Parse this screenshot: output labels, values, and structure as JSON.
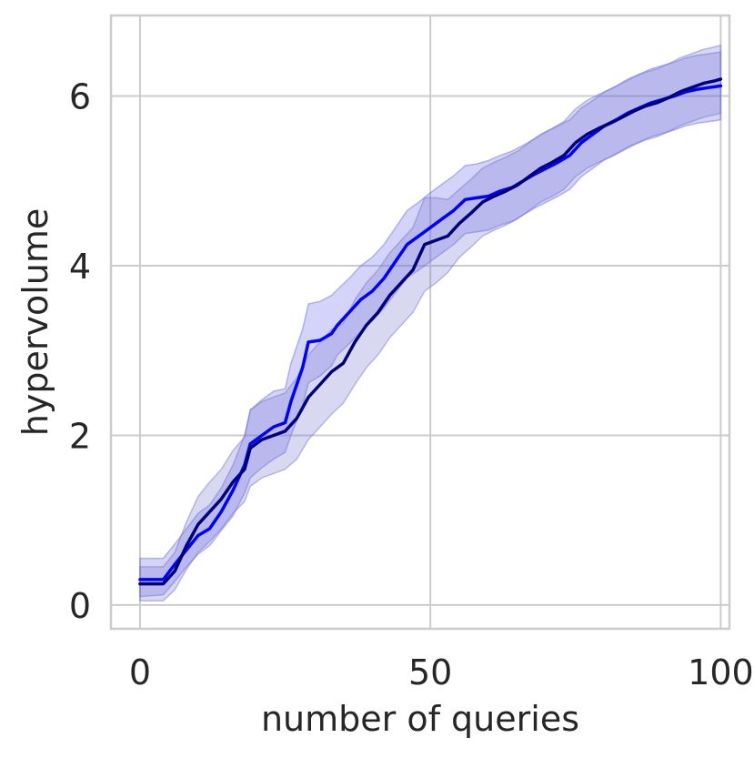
{
  "chart_data": {
    "type": "line",
    "title": "",
    "xlabel": "number of queries",
    "ylabel": "hypervolume",
    "xlim": [
      -5,
      101.5
    ],
    "ylim": [
      -0.28,
      6.95
    ],
    "xticks": [
      0,
      50,
      100
    ],
    "yticks": [
      0,
      2,
      4,
      6
    ],
    "grid": true,
    "legend": "none",
    "series": [
      {
        "color": "#0000ff",
        "band_color": "#6666ee",
        "points": [
          [
            0,
            0.3
          ],
          [
            4,
            0.3
          ],
          [
            6,
            0.48
          ],
          [
            8,
            0.65
          ],
          [
            10,
            0.82
          ],
          [
            12,
            0.9
          ],
          [
            14,
            1.1
          ],
          [
            16,
            1.35
          ],
          [
            18,
            1.65
          ],
          [
            19,
            1.9
          ],
          [
            21,
            2.0
          ],
          [
            23,
            2.1
          ],
          [
            25,
            2.15
          ],
          [
            26,
            2.4
          ],
          [
            28,
            2.8
          ],
          [
            29,
            3.1
          ],
          [
            31,
            3.12
          ],
          [
            33,
            3.2
          ],
          [
            34,
            3.3
          ],
          [
            36,
            3.45
          ],
          [
            38,
            3.6
          ],
          [
            40,
            3.7
          ],
          [
            42,
            3.85
          ],
          [
            44,
            4.05
          ],
          [
            46,
            4.25
          ],
          [
            48,
            4.35
          ],
          [
            50,
            4.45
          ],
          [
            52,
            4.55
          ],
          [
            54,
            4.65
          ],
          [
            56,
            4.78
          ],
          [
            58,
            4.8
          ],
          [
            60,
            4.82
          ],
          [
            62,
            4.88
          ],
          [
            64,
            4.92
          ],
          [
            66,
            5.0
          ],
          [
            68,
            5.08
          ],
          [
            70,
            5.15
          ],
          [
            72,
            5.22
          ],
          [
            74,
            5.3
          ],
          [
            76,
            5.45
          ],
          [
            78,
            5.55
          ],
          [
            80,
            5.65
          ],
          [
            82,
            5.72
          ],
          [
            84,
            5.8
          ],
          [
            86,
            5.86
          ],
          [
            88,
            5.92
          ],
          [
            90,
            5.96
          ],
          [
            92,
            6.0
          ],
          [
            94,
            6.05
          ],
          [
            96,
            6.08
          ],
          [
            98,
            6.1
          ],
          [
            100,
            6.12
          ]
        ],
        "lower": [
          [
            0,
            0.1
          ],
          [
            4,
            0.12
          ],
          [
            6,
            0.28
          ],
          [
            8,
            0.45
          ],
          [
            10,
            0.6
          ],
          [
            12,
            0.7
          ],
          [
            14,
            0.88
          ],
          [
            16,
            1.05
          ],
          [
            18,
            1.32
          ],
          [
            19,
            1.5
          ],
          [
            21,
            1.62
          ],
          [
            23,
            1.72
          ],
          [
            25,
            1.8
          ],
          [
            26,
            2.0
          ],
          [
            28,
            2.35
          ],
          [
            29,
            2.62
          ],
          [
            31,
            2.7
          ],
          [
            33,
            2.82
          ],
          [
            34,
            2.95
          ],
          [
            36,
            3.08
          ],
          [
            38,
            3.22
          ],
          [
            40,
            3.35
          ],
          [
            42,
            3.5
          ],
          [
            44,
            3.68
          ],
          [
            46,
            3.86
          ],
          [
            48,
            3.95
          ],
          [
            50,
            4.05
          ],
          [
            52,
            4.15
          ],
          [
            54,
            4.25
          ],
          [
            56,
            4.38
          ],
          [
            58,
            4.4
          ],
          [
            60,
            4.42
          ],
          [
            62,
            4.48
          ],
          [
            64,
            4.52
          ],
          [
            66,
            4.6
          ],
          [
            68,
            4.68
          ],
          [
            70,
            4.75
          ],
          [
            72,
            4.82
          ],
          [
            74,
            4.9
          ],
          [
            76,
            5.05
          ],
          [
            78,
            5.15
          ],
          [
            80,
            5.25
          ],
          [
            82,
            5.32
          ],
          [
            84,
            5.4
          ],
          [
            86,
            5.46
          ],
          [
            88,
            5.52
          ],
          [
            90,
            5.56
          ],
          [
            92,
            5.6
          ],
          [
            94,
            5.65
          ],
          [
            96,
            5.68
          ],
          [
            98,
            5.7
          ],
          [
            100,
            5.72
          ]
        ],
        "upper": [
          [
            0,
            0.55
          ],
          [
            4,
            0.55
          ],
          [
            6,
            0.72
          ],
          [
            8,
            0.9
          ],
          [
            10,
            1.08
          ],
          [
            12,
            1.18
          ],
          [
            14,
            1.38
          ],
          [
            16,
            1.65
          ],
          [
            18,
            2.0
          ],
          [
            19,
            2.3
          ],
          [
            21,
            2.42
          ],
          [
            23,
            2.52
          ],
          [
            25,
            2.55
          ],
          [
            26,
            2.85
          ],
          [
            28,
            3.25
          ],
          [
            29,
            3.55
          ],
          [
            31,
            3.58
          ],
          [
            33,
            3.65
          ],
          [
            34,
            3.72
          ],
          [
            36,
            3.85
          ],
          [
            38,
            4.0
          ],
          [
            40,
            4.1
          ],
          [
            42,
            4.25
          ],
          [
            44,
            4.45
          ],
          [
            46,
            4.65
          ],
          [
            48,
            4.75
          ],
          [
            50,
            4.86
          ],
          [
            52,
            4.96
          ],
          [
            54,
            5.06
          ],
          [
            56,
            5.18
          ],
          [
            58,
            5.2
          ],
          [
            60,
            5.24
          ],
          [
            62,
            5.3
          ],
          [
            64,
            5.35
          ],
          [
            66,
            5.42
          ],
          [
            68,
            5.5
          ],
          [
            70,
            5.58
          ],
          [
            72,
            5.65
          ],
          [
            74,
            5.72
          ],
          [
            76,
            5.86
          ],
          [
            78,
            5.95
          ],
          [
            80,
            6.05
          ],
          [
            82,
            6.12
          ],
          [
            84,
            6.2
          ],
          [
            86,
            6.26
          ],
          [
            88,
            6.32
          ],
          [
            90,
            6.36
          ],
          [
            92,
            6.4
          ],
          [
            94,
            6.45
          ],
          [
            96,
            6.48
          ],
          [
            98,
            6.5
          ],
          [
            100,
            6.52
          ]
        ]
      },
      {
        "color": "#00007a",
        "band_color": "#7474cc",
        "points": [
          [
            0,
            0.25
          ],
          [
            4,
            0.25
          ],
          [
            6,
            0.4
          ],
          [
            8,
            0.7
          ],
          [
            10,
            0.95
          ],
          [
            12,
            1.1
          ],
          [
            14,
            1.25
          ],
          [
            16,
            1.45
          ],
          [
            18,
            1.6
          ],
          [
            19,
            1.85
          ],
          [
            21,
            1.95
          ],
          [
            23,
            2.0
          ],
          [
            25,
            2.05
          ],
          [
            27,
            2.2
          ],
          [
            29,
            2.45
          ],
          [
            31,
            2.6
          ],
          [
            33,
            2.75
          ],
          [
            35,
            2.85
          ],
          [
            37,
            3.1
          ],
          [
            39,
            3.3
          ],
          [
            41,
            3.45
          ],
          [
            43,
            3.65
          ],
          [
            45,
            3.8
          ],
          [
            47,
            3.95
          ],
          [
            49,
            4.25
          ],
          [
            51,
            4.3
          ],
          [
            53,
            4.35
          ],
          [
            55,
            4.5
          ],
          [
            57,
            4.62
          ],
          [
            59,
            4.75
          ],
          [
            61,
            4.82
          ],
          [
            63,
            4.88
          ],
          [
            65,
            4.95
          ],
          [
            67,
            5.05
          ],
          [
            69,
            5.15
          ],
          [
            71,
            5.22
          ],
          [
            73,
            5.3
          ],
          [
            75,
            5.45
          ],
          [
            77,
            5.55
          ],
          [
            79,
            5.62
          ],
          [
            81,
            5.68
          ],
          [
            83,
            5.75
          ],
          [
            85,
            5.82
          ],
          [
            87,
            5.88
          ],
          [
            89,
            5.92
          ],
          [
            91,
            5.98
          ],
          [
            93,
            6.05
          ],
          [
            95,
            6.1
          ],
          [
            97,
            6.15
          ],
          [
            99,
            6.18
          ],
          [
            100,
            6.2
          ]
        ],
        "lower": [
          [
            0,
            0.05
          ],
          [
            4,
            0.05
          ],
          [
            6,
            0.18
          ],
          [
            8,
            0.42
          ],
          [
            10,
            0.62
          ],
          [
            12,
            0.75
          ],
          [
            14,
            0.9
          ],
          [
            16,
            1.08
          ],
          [
            18,
            1.22
          ],
          [
            19,
            1.4
          ],
          [
            21,
            1.5
          ],
          [
            23,
            1.55
          ],
          [
            25,
            1.6
          ],
          [
            27,
            1.72
          ],
          [
            29,
            1.95
          ],
          [
            31,
            2.1
          ],
          [
            33,
            2.25
          ],
          [
            35,
            2.38
          ],
          [
            37,
            2.6
          ],
          [
            39,
            2.8
          ],
          [
            41,
            2.95
          ],
          [
            43,
            3.15
          ],
          [
            45,
            3.3
          ],
          [
            47,
            3.45
          ],
          [
            49,
            3.7
          ],
          [
            51,
            3.8
          ],
          [
            53,
            3.92
          ],
          [
            55,
            4.1
          ],
          [
            57,
            4.22
          ],
          [
            59,
            4.35
          ],
          [
            61,
            4.42
          ],
          [
            63,
            4.48
          ],
          [
            65,
            4.55
          ],
          [
            67,
            4.65
          ],
          [
            69,
            4.75
          ],
          [
            71,
            4.82
          ],
          [
            73,
            4.9
          ],
          [
            75,
            5.05
          ],
          [
            77,
            5.15
          ],
          [
            79,
            5.22
          ],
          [
            81,
            5.28
          ],
          [
            83,
            5.35
          ],
          [
            85,
            5.42
          ],
          [
            87,
            5.48
          ],
          [
            89,
            5.52
          ],
          [
            91,
            5.58
          ],
          [
            93,
            5.65
          ],
          [
            95,
            5.7
          ],
          [
            97,
            5.75
          ],
          [
            99,
            5.78
          ],
          [
            100,
            5.8
          ]
        ],
        "upper": [
          [
            0,
            0.45
          ],
          [
            4,
            0.45
          ],
          [
            6,
            0.62
          ],
          [
            8,
            0.98
          ],
          [
            10,
            1.28
          ],
          [
            12,
            1.45
          ],
          [
            14,
            1.6
          ],
          [
            16,
            1.82
          ],
          [
            18,
            1.98
          ],
          [
            19,
            2.3
          ],
          [
            21,
            2.4
          ],
          [
            23,
            2.45
          ],
          [
            25,
            2.5
          ],
          [
            27,
            2.68
          ],
          [
            29,
            2.95
          ],
          [
            31,
            3.1
          ],
          [
            33,
            3.25
          ],
          [
            35,
            3.32
          ],
          [
            37,
            3.6
          ],
          [
            39,
            3.8
          ],
          [
            41,
            3.95
          ],
          [
            43,
            4.15
          ],
          [
            45,
            4.3
          ],
          [
            47,
            4.45
          ],
          [
            49,
            4.8
          ],
          [
            51,
            4.8
          ],
          [
            53,
            4.78
          ],
          [
            55,
            4.9
          ],
          [
            57,
            5.02
          ],
          [
            59,
            5.15
          ],
          [
            61,
            5.22
          ],
          [
            63,
            5.28
          ],
          [
            65,
            5.35
          ],
          [
            67,
            5.45
          ],
          [
            69,
            5.55
          ],
          [
            71,
            5.62
          ],
          [
            73,
            5.7
          ],
          [
            75,
            5.85
          ],
          [
            77,
            5.95
          ],
          [
            79,
            6.02
          ],
          [
            81,
            6.08
          ],
          [
            83,
            6.15
          ],
          [
            85,
            6.22
          ],
          [
            87,
            6.28
          ],
          [
            89,
            6.32
          ],
          [
            91,
            6.38
          ],
          [
            93,
            6.45
          ],
          [
            95,
            6.5
          ],
          [
            97,
            6.55
          ],
          [
            99,
            6.58
          ],
          [
            100,
            6.6
          ]
        ]
      }
    ]
  }
}
